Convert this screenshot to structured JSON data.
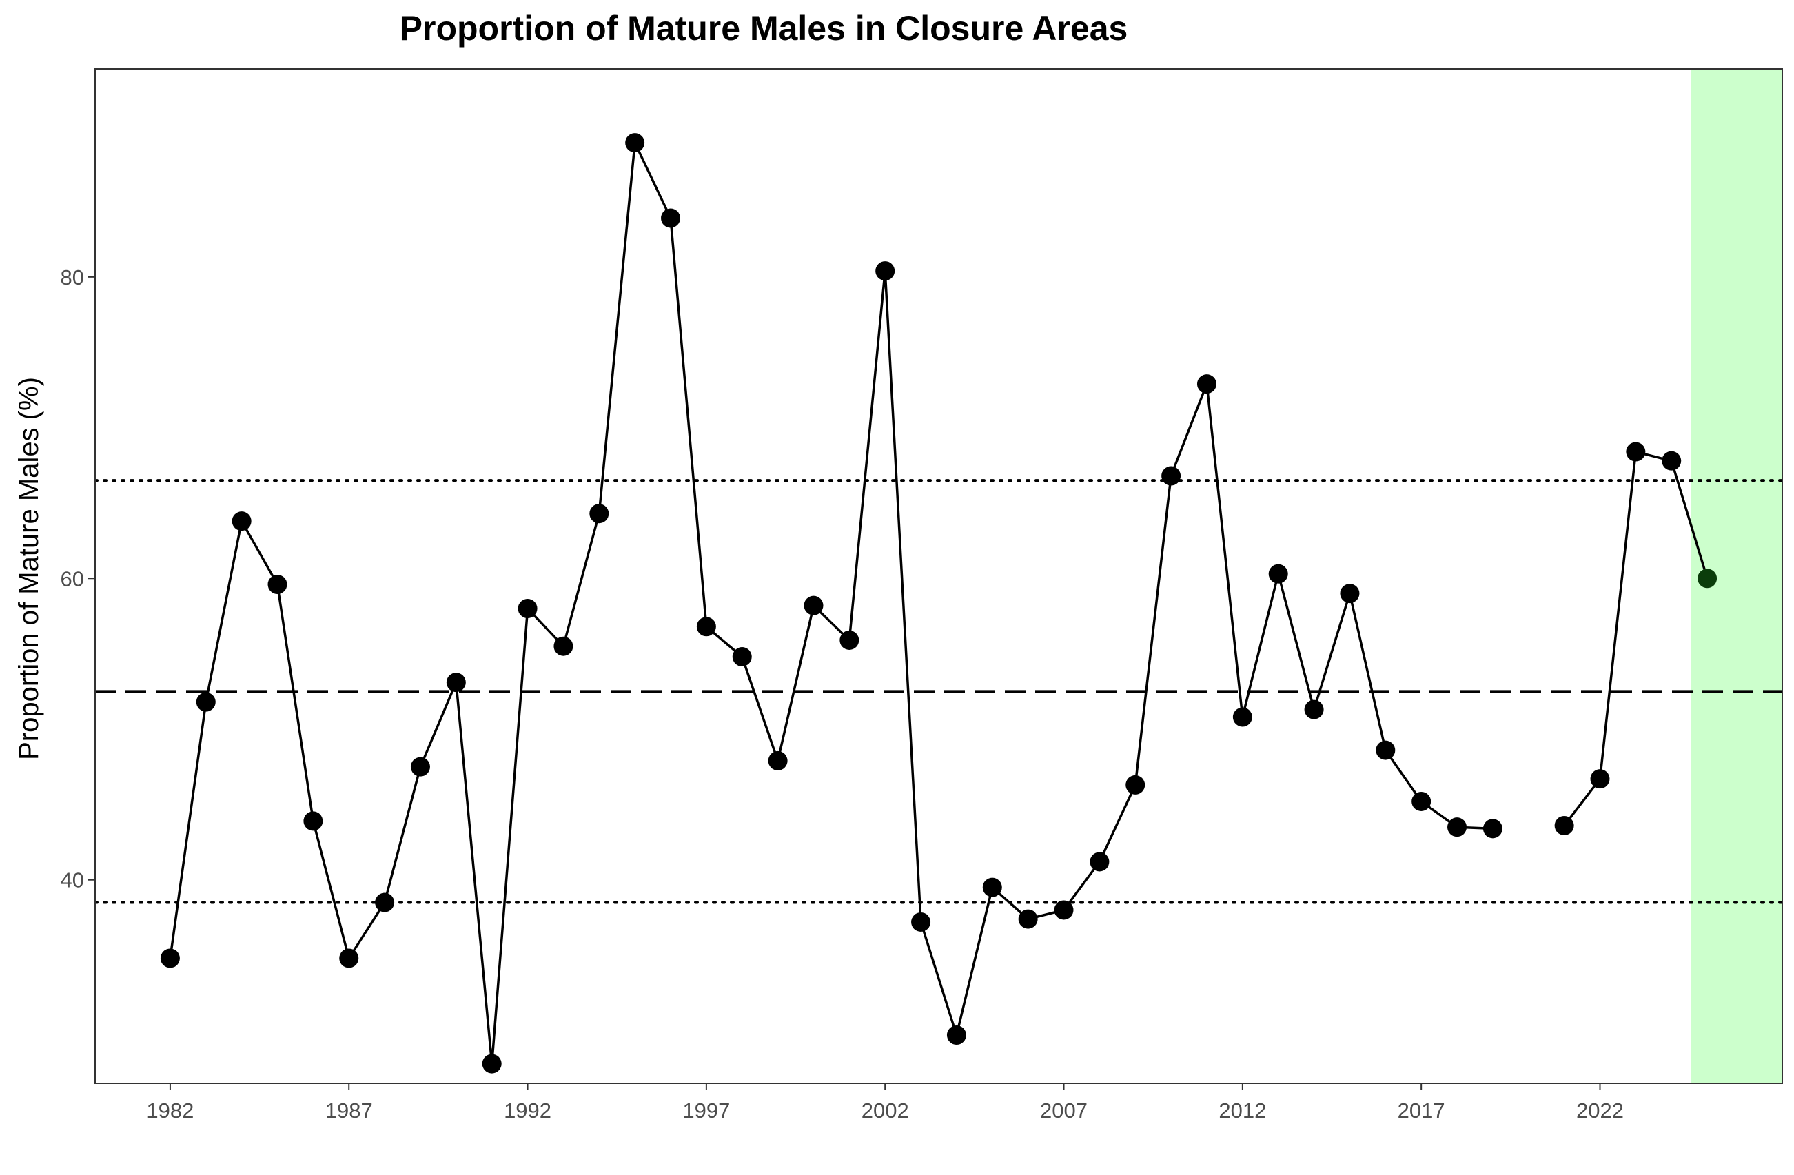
{
  "chart_data": {
    "type": "line",
    "title": "Proportion of Mature Males in Closure Areas",
    "xlabel": "",
    "ylabel": "Proportion of Mature Males (%)",
    "xlim": [
      1979.9,
      2027.1
    ],
    "ylim": [
      26.5,
      93.8
    ],
    "x_ticks": [
      1982,
      1987,
      1992,
      1997,
      2002,
      2007,
      2012,
      2017,
      2022
    ],
    "y_ticks": [
      40,
      60,
      80
    ],
    "grid": false,
    "series": [
      {
        "values": [
          [
            1982,
            34.8
          ],
          [
            1983,
            51.8
          ],
          [
            1984,
            63.8
          ],
          [
            1985,
            59.6
          ],
          [
            1986,
            43.9
          ],
          [
            1987,
            34.8
          ],
          [
            1988,
            38.5
          ],
          [
            1989,
            47.5
          ],
          [
            1990,
            53.1
          ],
          [
            1991,
            27.8
          ],
          [
            1992,
            58.0
          ],
          [
            1993,
            55.5
          ],
          [
            1994,
            64.3
          ],
          [
            1995,
            88.9
          ],
          [
            1996,
            83.9
          ],
          [
            1997,
            56.8
          ],
          [
            1998,
            54.8
          ],
          [
            1999,
            47.9
          ],
          [
            2000,
            58.2
          ],
          [
            2001,
            55.9
          ],
          [
            2002,
            80.4
          ],
          [
            2003,
            37.2
          ],
          [
            2004,
            29.7
          ],
          [
            2005,
            39.5
          ],
          [
            2006,
            37.4
          ],
          [
            2007,
            38.0
          ],
          [
            2008,
            41.2
          ],
          [
            2009,
            46.3
          ],
          [
            2010,
            66.8
          ],
          [
            2011,
            72.9
          ],
          [
            2012,
            50.8
          ],
          [
            2013,
            60.3
          ],
          [
            2014,
            51.3
          ],
          [
            2015,
            59.0
          ],
          [
            2016,
            48.6
          ],
          [
            2017,
            45.2
          ],
          [
            2018,
            43.5
          ],
          [
            2019,
            43.4
          ],
          [
            2020,
            null
          ],
          [
            2021,
            43.6
          ],
          [
            2022,
            46.7
          ],
          [
            2023,
            68.4
          ],
          [
            2024,
            67.8
          ],
          [
            2025,
            60.0
          ]
        ]
      }
    ],
    "reference_lines": {
      "mean_dashed": 52.5,
      "upper_dotted": 66.5,
      "lower_dotted": 38.5
    },
    "highlight_region": {
      "x_start": 2024.55,
      "x_end": 2027.1,
      "color": "#ccffcc"
    },
    "colors": {
      "line": "#000000",
      "point": "#000000",
      "highlight_point": "#0b3d0b",
      "tick_label": "#4d4d4d"
    }
  }
}
